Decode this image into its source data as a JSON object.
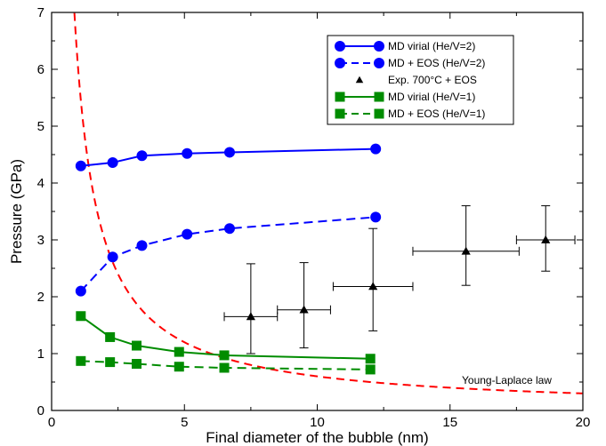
{
  "chart_data": {
    "type": "line",
    "xlabel": "Final diameter of the bubble (nm)",
    "ylabel": "Pressure (GPa)",
    "xlim": [
      0,
      20
    ],
    "ylim": [
      0,
      7
    ],
    "xticks": [
      0,
      5,
      10,
      15,
      20
    ],
    "yticks": [
      0,
      1,
      2,
      3,
      4,
      5,
      6,
      7
    ],
    "grid": false,
    "legend_position": "top-right",
    "series": [
      {
        "name": "MD virial (He/V=2)",
        "color": "#0000ff",
        "line": "solid",
        "marker": "circle",
        "x": [
          1.1,
          2.3,
          3.4,
          5.1,
          6.7,
          12.2
        ],
        "y": [
          4.3,
          4.36,
          4.48,
          4.52,
          4.54,
          4.6
        ]
      },
      {
        "name": "MD + EOS (He/V=2)",
        "color": "#0000ff",
        "line": "dashed",
        "marker": "circle",
        "x": [
          1.1,
          2.3,
          3.4,
          5.1,
          6.7,
          12.2
        ],
        "y": [
          2.1,
          2.7,
          2.9,
          3.1,
          3.2,
          3.4
        ]
      },
      {
        "name": "Exp. 700°C + EOS",
        "color": "#000000",
        "line": "none",
        "marker": "triangle",
        "x": [
          7.5,
          9.5,
          12.1,
          15.6,
          18.6
        ],
        "y": [
          1.65,
          1.77,
          2.18,
          2.8,
          3.0
        ],
        "xerr": [
          1.0,
          1.0,
          1.5,
          2.0,
          1.1
        ],
        "yerr_low": [
          0.65,
          0.67,
          0.78,
          0.6,
          0.55
        ],
        "yerr_high": [
          0.93,
          0.83,
          1.02,
          0.8,
          0.6
        ]
      },
      {
        "name": "MD virial (He/V=1)",
        "color": "#008c00",
        "line": "solid",
        "marker": "square",
        "x": [
          1.1,
          2.2,
          3.2,
          4.8,
          6.5,
          12.0
        ],
        "y": [
          1.66,
          1.29,
          1.14,
          1.03,
          0.97,
          0.91
        ]
      },
      {
        "name": "MD + EOS (He/V=1)",
        "color": "#008c00",
        "line": "dashed",
        "marker": "square",
        "x": [
          1.1,
          2.2,
          3.2,
          4.8,
          6.5,
          12.0
        ],
        "y": [
          0.87,
          0.85,
          0.82,
          0.77,
          0.75,
          0.72
        ]
      }
    ],
    "curve": {
      "label": "Young-Laplace law",
      "color": "#ff0000",
      "line": "dashed",
      "relation": "P = 6 / d",
      "coefficient": 6
    }
  }
}
